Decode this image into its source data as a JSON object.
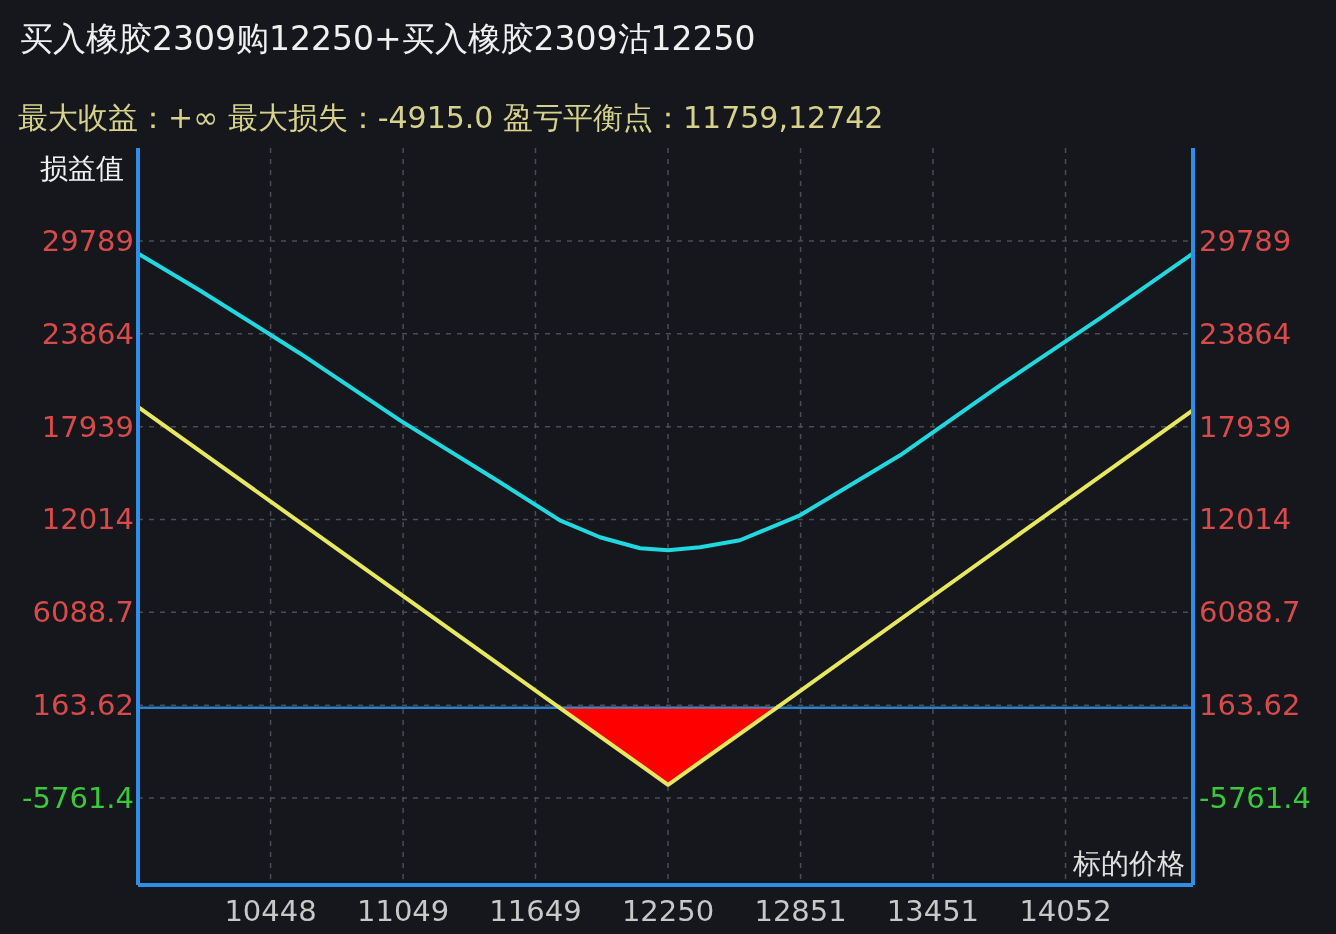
{
  "chart_data": {
    "type": "line",
    "title": "买入橡胶2309购12250+买入橡胶2309沽12250",
    "subtitle": "最大收益：+∞ 最大损失：-4915.0 盈亏平衡点：11759,12742",
    "ylabel": "损益值",
    "xlabel": "标的价格",
    "xlim": [
      9847,
      14630
    ],
    "xticks": [
      10448,
      11049,
      11649,
      12250,
      12851,
      13451,
      14052
    ],
    "ylim": [
      -11310,
      35720
    ],
    "yticks": [
      29789,
      23864,
      17939,
      12014,
      6088.7,
      163.62,
      -5761.4
    ],
    "y2lim": [
      -11310,
      35720
    ],
    "y2ticks": [
      29789,
      23864,
      17939,
      12014,
      6088.7,
      163.62,
      -5761.4
    ],
    "grid": true,
    "ref_lines": [
      {
        "axis": "y",
        "value": 0,
        "color": "#2f7fd0",
        "line_style": "solid"
      }
    ],
    "series": [
      {
        "type": "area",
        "color": "#ff0000",
        "x": [
          11759,
          12250,
          12742
        ],
        "values": [
          0,
          -4915,
          0
        ]
      },
      {
        "type": "line",
        "color": "#20d8e0",
        "x": [
          9847,
          10128,
          10582,
          11035,
          11488,
          11760,
          11942,
          12123,
          12250,
          12395,
          12576,
          12848,
          13302,
          13755,
          14208,
          14630
        ],
        "values": [
          28990,
          26630,
          22610,
          18340,
          14390,
          11960,
          10880,
          10180,
          10050,
          10240,
          10690,
          12280,
          16110,
          20570,
          24850,
          28990
        ]
      },
      {
        "type": "line",
        "color": "#e8e860",
        "x": [
          9847,
          11759,
          12250,
          12742,
          14630
        ],
        "values": [
          19200,
          0,
          -4915,
          0,
          19000
        ]
      }
    ]
  }
}
